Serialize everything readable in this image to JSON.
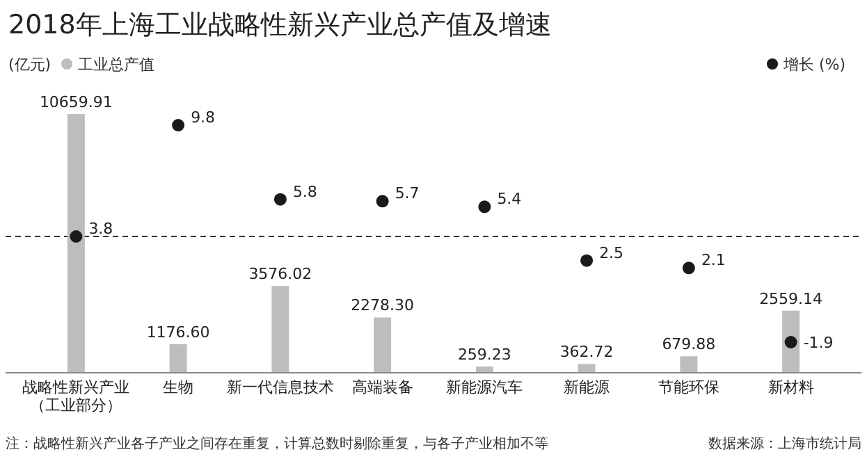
{
  "chart_data": {
    "type": "bar",
    "title": "2018年上海工业战略性新兴产业总产值及增速",
    "ylabel": "(亿元)",
    "categories": [
      "战略性新兴产业（工业部分）",
      "生物",
      "新一代信息技术",
      "高端装备",
      "新能源汽车",
      "新能源",
      "节能环保",
      "新材料"
    ],
    "series": [
      {
        "name": "工业总产值",
        "color": "#bdbdbd",
        "values": [
          10659.91,
          1176.6,
          3576.02,
          2278.3,
          259.23,
          362.72,
          679.88,
          2559.14
        ],
        "value_labels": [
          "10659.91",
          "1176.60",
          "3576.02",
          "2278.30",
          "259.23",
          "362.72",
          "679.88",
          "2559.14"
        ]
      },
      {
        "name": "增长 (%)",
        "type": "scatter",
        "axis": "y2",
        "color": "#1a1a1a",
        "values": [
          3.8,
          9.8,
          5.8,
          5.7,
          5.4,
          2.5,
          2.1,
          -1.9
        ],
        "value_labels": [
          "3.8",
          "9.8",
          "5.8",
          "5.7",
          "5.4",
          "2.5",
          "2.1",
          "-1.9"
        ]
      }
    ],
    "legend": "top",
    "marker": "circle",
    "ref_lines": [
      {
        "axis": "y2",
        "value": 3.8,
        "color": "#333333",
        "line_style": "dashed"
      }
    ],
    "annotations": [
      "注：战略性新兴产业各子产业之间存在重复，计算总数时剔除重复，与各子产业相加不等",
      "数据来源：上海市统计局"
    ]
  }
}
